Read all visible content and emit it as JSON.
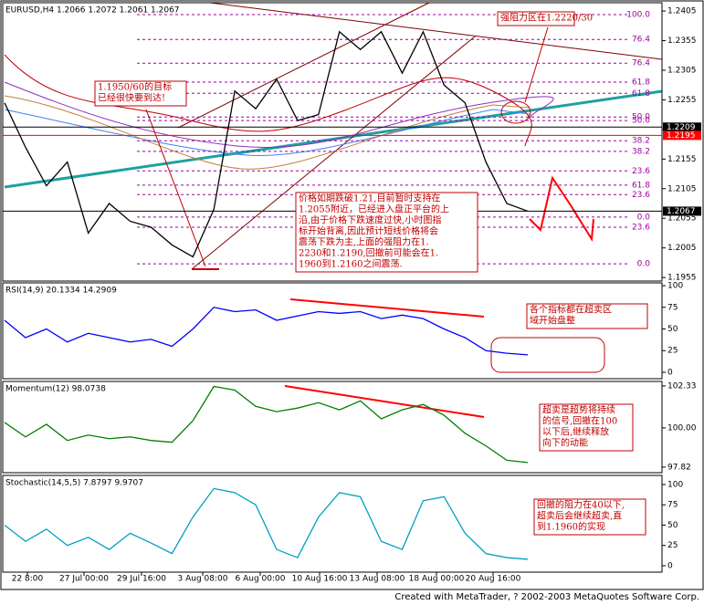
{
  "chart_data": [
    {
      "type": "line",
      "header": "EURUSD,H4  1.2066 1.2072 1.2061 1.2067",
      "ylim": [
        1.1949,
        1.2419
      ],
      "yticks": [
        1.2405,
        1.2355,
        1.2305,
        1.2255,
        1.2205,
        1.2155,
        1.2105,
        1.2055,
        1.2005,
        1.1955
      ],
      "price_tags": [
        {
          "value": 1.2209,
          "color": "#000000"
        },
        {
          "value": 1.2195,
          "color": "#ff0000"
        },
        {
          "value": 1.2067,
          "color": "#000000"
        }
      ],
      "fib_levels": [
        {
          "value": 1.2399,
          "label": "100.0"
        },
        {
          "value": 1.2357,
          "label": "76.4"
        },
        {
          "value": 1.2317,
          "label": "76.4"
        },
        {
          "value": 1.2285,
          "label": "61.8"
        },
        {
          "value": 1.2266,
          "label": "61.8"
        },
        {
          "value": 1.2226,
          "label": "50.0"
        },
        {
          "value": 1.222,
          "label": "50.0"
        },
        {
          "value": 1.2186,
          "label": "38.2"
        },
        {
          "value": 1.2168,
          "label": "38.2"
        },
        {
          "value": 1.2135,
          "label": "23.6"
        },
        {
          "value": 1.2111,
          "label": "61.8"
        },
        {
          "value": 1.2095,
          "label": "23.6"
        },
        {
          "value": 1.2057,
          "label": "0.0"
        },
        {
          "value": 1.204,
          "label": "23.6"
        },
        {
          "value": 1.1978,
          "label": "0.0"
        }
      ],
      "series": [
        {
          "color": "#000000",
          "values": [
            1.225,
            1.2175,
            1.211,
            1.215,
            1.203,
            1.208,
            1.205,
            1.204,
            1.201,
            1.199,
            1.207,
            1.227,
            1.224,
            1.229,
            1.222,
            1.223,
            1.237,
            1.234,
            1.237,
            1.23,
            1.237,
            1.228,
            1.225,
            1.215,
            1.208,
            1.2067
          ]
        }
      ],
      "annotations": [
        [
          "强阻力区在1.2220/30"
        ],
        [
          "1.1950/60的目标",
          "已经很快要到达!"
        ],
        [
          "价格如期跌破1.21,目前暂时支持在",
          "1.2055附近，已经进入盘正平台的上",
          "沿,由于价格下跌速度过快,小时图指",
          "标开始背离,因此预计短线价格将会",
          "震荡下跌为主,上面的强阻力在1.",
          "2230和1.2190,回撤前可能会在1.",
          "1960到1.2160之间震荡."
        ]
      ]
    },
    {
      "type": "line",
      "header": "RSI(14,9) 20.1334 14.2909",
      "ylim": [
        -7.4,
        103.2
      ],
      "yticks": [
        100,
        75,
        50,
        25,
        0
      ],
      "series": [
        {
          "color": "#0000ff",
          "values": [
            60,
            40,
            50,
            35,
            45,
            40,
            35,
            38,
            30,
            50,
            75,
            70,
            72,
            60,
            65,
            70,
            68,
            70,
            62,
            66,
            62,
            50,
            40,
            25,
            22,
            20.1334
          ]
        }
      ],
      "annotations": [
        [
          "各个指标都在超卖区",
          "域开始盘整"
        ]
      ]
    },
    {
      "type": "line",
      "header": "Momentum(12) 98.0738",
      "ylim": [
        97.51,
        102.58
      ],
      "yticks": [
        102.33,
        {
          "value": 100,
          "label": "100.00"
        },
        97.82
      ],
      "series": [
        {
          "color": "#008000",
          "values": [
            100.3,
            99.5,
            100.2,
            99.3,
            99.6,
            99.4,
            99.5,
            99.3,
            99.2,
            100.4,
            102.3,
            102.1,
            101.2,
            100.9,
            101.1,
            101.4,
            101.0,
            101.5,
            100.5,
            101.0,
            101.3,
            100.7,
            99.7,
            99.0,
            98.2,
            98.0738
          ]
        }
      ],
      "annotations": [
        [
          "超卖是超势将持续",
          "的信号,回撤在100",
          "以下后,继续释放",
          "向下的动能"
        ]
      ]
    },
    {
      "type": "line",
      "header": "Stochastic(14,5,5) 7.8797 9.9707",
      "ylim": [
        -7.9,
        111.2
      ],
      "yticks": [
        100,
        75,
        50,
        25,
        0
      ],
      "series": [
        {
          "color": "#00a0c0",
          "values": [
            50,
            30,
            45,
            25,
            35,
            20,
            40,
            28,
            15,
            60,
            95,
            90,
            75,
            20,
            10,
            60,
            90,
            85,
            30,
            20,
            80,
            85,
            40,
            15,
            10,
            7.8797
          ]
        }
      ],
      "annotations": [
        [
          "回撤的阻力在40以下,",
          "超卖后会继续超卖,直",
          "到1.1960的实现"
        ]
      ]
    }
  ],
  "x_labels": [
    "22 8:00",
    "27 Jul 00:00",
    "29 Jul 16:00",
    "3 Aug 08:00",
    "6 Aug 00:00",
    "10 Aug 16:00",
    "13 Aug 08:00",
    "18 Aug 00:00",
    "20 Aug 16:00"
  ],
  "footer": "Created with MetaTrader, ? 2002-2003 MetaQuotes Software Corp."
}
